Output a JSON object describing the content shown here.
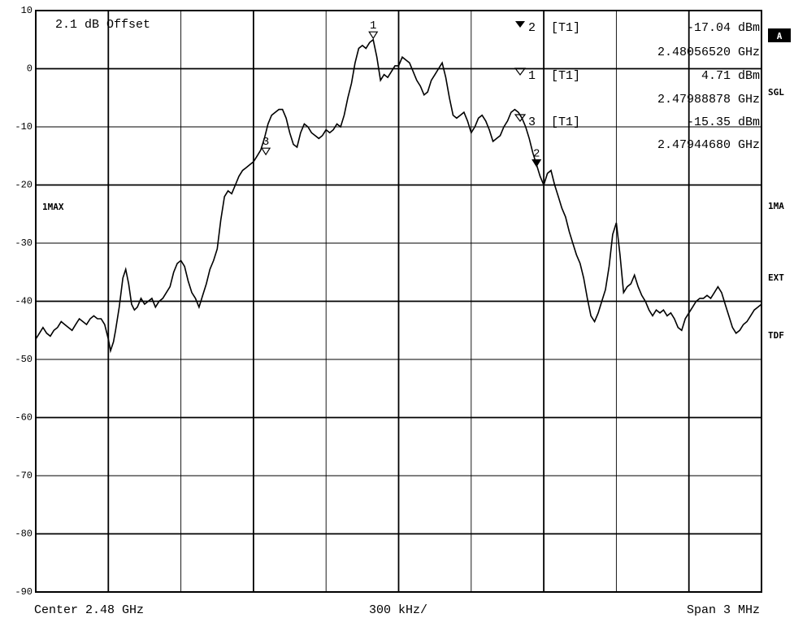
{
  "chart_data": {
    "type": "line",
    "instrument": "spectrum-analyzer",
    "grid": true,
    "ylim": [
      -90,
      10
    ],
    "xlim_index": [
      0,
      10
    ],
    "y_ticks": [
      "10",
      "0",
      "-10",
      "-20",
      "-30",
      "-40",
      "-50",
      "-60",
      "-70",
      "-80",
      "-90"
    ],
    "offset_label": "2.1 dB Offset",
    "trace_label": "1MAX",
    "footer": {
      "center": "Center 2.48 GHz",
      "div": "300 kHz/",
      "span": "Span 3 MHz"
    },
    "side_labels": {
      "a": "A",
      "sgl": "SGL",
      "ima": "1MA",
      "ext": "EXT",
      "tdf": "TDF"
    },
    "marker_readouts": [
      {
        "label": "2",
        "trace": "[T1]",
        "level": "-17.04 dBm",
        "freq": "2.48056520 GHz",
        "filled": true
      },
      {
        "label": "1",
        "trace": "[T1]",
        "level": "4.71 dBm",
        "freq": "2.47988878 GHz",
        "filled": false
      },
      {
        "label": "3",
        "trace": "[T1]",
        "level": "-15.35 dBm",
        "freq": "2.47944680 GHz",
        "filled": false
      }
    ],
    "markers": [
      {
        "label": "1",
        "x": 4.65,
        "y": 5.5,
        "filled": false
      },
      {
        "label": "2",
        "x": 6.9,
        "y": -16.5,
        "filled": true
      },
      {
        "label": "3",
        "x": 3.17,
        "y": -14.5,
        "filled": false
      }
    ],
    "series": [
      {
        "points": [
          [
            0.0,
            -46.5
          ],
          [
            0.05,
            -45.5
          ],
          [
            0.1,
            -44.5
          ],
          [
            0.15,
            -45.5
          ],
          [
            0.2,
            -46.0
          ],
          [
            0.25,
            -45.0
          ],
          [
            0.3,
            -44.5
          ],
          [
            0.35,
            -43.5
          ],
          [
            0.4,
            -44.0
          ],
          [
            0.45,
            -44.5
          ],
          [
            0.5,
            -45.0
          ],
          [
            0.55,
            -44.0
          ],
          [
            0.6,
            -43.0
          ],
          [
            0.65,
            -43.5
          ],
          [
            0.7,
            -44.0
          ],
          [
            0.75,
            -43.0
          ],
          [
            0.8,
            -42.5
          ],
          [
            0.85,
            -43.0
          ],
          [
            0.9,
            -43.0
          ],
          [
            0.95,
            -44.0
          ],
          [
            1.0,
            -46.5
          ],
          [
            1.03,
            -48.5
          ],
          [
            1.07,
            -47.0
          ],
          [
            1.1,
            -45.0
          ],
          [
            1.15,
            -41.0
          ],
          [
            1.2,
            -36.0
          ],
          [
            1.24,
            -34.5
          ],
          [
            1.28,
            -37.0
          ],
          [
            1.32,
            -40.5
          ],
          [
            1.36,
            -41.5
          ],
          [
            1.4,
            -41.0
          ],
          [
            1.45,
            -39.5
          ],
          [
            1.5,
            -40.5
          ],
          [
            1.55,
            -40.0
          ],
          [
            1.6,
            -39.5
          ],
          [
            1.65,
            -41.0
          ],
          [
            1.7,
            -40.0
          ],
          [
            1.75,
            -39.5
          ],
          [
            1.8,
            -38.5
          ],
          [
            1.85,
            -37.5
          ],
          [
            1.9,
            -35.0
          ],
          [
            1.95,
            -33.5
          ],
          [
            2.0,
            -33.0
          ],
          [
            2.05,
            -34.0
          ],
          [
            2.1,
            -36.5
          ],
          [
            2.15,
            -38.5
          ],
          [
            2.2,
            -39.5
          ],
          [
            2.25,
            -41.0
          ],
          [
            2.3,
            -39.0
          ],
          [
            2.35,
            -37.0
          ],
          [
            2.4,
            -34.5
          ],
          [
            2.45,
            -33.0
          ],
          [
            2.5,
            -31.0
          ],
          [
            2.55,
            -26.0
          ],
          [
            2.6,
            -22.0
          ],
          [
            2.65,
            -21.0
          ],
          [
            2.7,
            -21.5
          ],
          [
            2.75,
            -20.0
          ],
          [
            2.8,
            -18.5
          ],
          [
            2.85,
            -17.5
          ],
          [
            2.9,
            -17.0
          ],
          [
            2.95,
            -16.5
          ],
          [
            3.0,
            -16.0
          ],
          [
            3.05,
            -15.0
          ],
          [
            3.1,
            -14.0
          ],
          [
            3.15,
            -12.0
          ],
          [
            3.2,
            -9.5
          ],
          [
            3.25,
            -8.0
          ],
          [
            3.3,
            -7.5
          ],
          [
            3.35,
            -7.0
          ],
          [
            3.4,
            -7.0
          ],
          [
            3.45,
            -8.5
          ],
          [
            3.5,
            -11.0
          ],
          [
            3.55,
            -13.0
          ],
          [
            3.6,
            -13.5
          ],
          [
            3.65,
            -11.0
          ],
          [
            3.7,
            -9.5
          ],
          [
            3.75,
            -10.0
          ],
          [
            3.8,
            -11.0
          ],
          [
            3.85,
            -11.5
          ],
          [
            3.9,
            -12.0
          ],
          [
            3.95,
            -11.5
          ],
          [
            4.0,
            -10.5
          ],
          [
            4.05,
            -11.0
          ],
          [
            4.1,
            -10.5
          ],
          [
            4.15,
            -9.5
          ],
          [
            4.2,
            -10.0
          ],
          [
            4.25,
            -8.0
          ],
          [
            4.3,
            -5.0
          ],
          [
            4.35,
            -2.5
          ],
          [
            4.4,
            1.0
          ],
          [
            4.45,
            3.5
          ],
          [
            4.5,
            4.0
          ],
          [
            4.55,
            3.5
          ],
          [
            4.6,
            4.5
          ],
          [
            4.65,
            5.0
          ],
          [
            4.7,
            2.0
          ],
          [
            4.75,
            -2.0
          ],
          [
            4.8,
            -1.0
          ],
          [
            4.85,
            -1.5
          ],
          [
            4.9,
            -0.5
          ],
          [
            4.95,
            0.5
          ],
          [
            5.0,
            0.5
          ],
          [
            5.05,
            2.0
          ],
          [
            5.1,
            1.5
          ],
          [
            5.15,
            1.0
          ],
          [
            5.2,
            -0.5
          ],
          [
            5.25,
            -2.0
          ],
          [
            5.3,
            -3.0
          ],
          [
            5.35,
            -4.5
          ],
          [
            5.4,
            -4.0
          ],
          [
            5.45,
            -2.0
          ],
          [
            5.5,
            -1.0
          ],
          [
            5.55,
            0.0
          ],
          [
            5.6,
            1.0
          ],
          [
            5.65,
            -1.5
          ],
          [
            5.7,
            -5.0
          ],
          [
            5.75,
            -8.0
          ],
          [
            5.8,
            -8.5
          ],
          [
            5.85,
            -8.0
          ],
          [
            5.9,
            -7.5
          ],
          [
            5.95,
            -9.0
          ],
          [
            6.0,
            -11.0
          ],
          [
            6.05,
            -10.0
          ],
          [
            6.1,
            -8.5
          ],
          [
            6.15,
            -8.0
          ],
          [
            6.2,
            -9.0
          ],
          [
            6.25,
            -10.5
          ],
          [
            6.3,
            -12.5
          ],
          [
            6.35,
            -12.0
          ],
          [
            6.4,
            -11.5
          ],
          [
            6.45,
            -10.0
          ],
          [
            6.5,
            -9.0
          ],
          [
            6.55,
            -7.5
          ],
          [
            6.6,
            -7.0
          ],
          [
            6.65,
            -7.5
          ],
          [
            6.7,
            -8.5
          ],
          [
            6.75,
            -10.0
          ],
          [
            6.8,
            -12.0
          ],
          [
            6.85,
            -14.5
          ],
          [
            6.9,
            -16.5
          ],
          [
            6.95,
            -18.5
          ],
          [
            7.0,
            -20.0
          ],
          [
            7.05,
            -18.0
          ],
          [
            7.1,
            -17.5
          ],
          [
            7.15,
            -20.0
          ],
          [
            7.2,
            -22.0
          ],
          [
            7.25,
            -24.0
          ],
          [
            7.3,
            -25.5
          ],
          [
            7.35,
            -28.0
          ],
          [
            7.4,
            -30.0
          ],
          [
            7.45,
            -32.0
          ],
          [
            7.5,
            -33.5
          ],
          [
            7.55,
            -36.0
          ],
          [
            7.6,
            -39.5
          ],
          [
            7.65,
            -42.5
          ],
          [
            7.7,
            -43.5
          ],
          [
            7.75,
            -42.0
          ],
          [
            7.8,
            -40.0
          ],
          [
            7.85,
            -38.0
          ],
          [
            7.9,
            -34.0
          ],
          [
            7.95,
            -28.5
          ],
          [
            8.0,
            -26.5
          ],
          [
            8.05,
            -32.0
          ],
          [
            8.1,
            -38.5
          ],
          [
            8.15,
            -37.5
          ],
          [
            8.2,
            -37.0
          ],
          [
            8.25,
            -35.5
          ],
          [
            8.3,
            -37.5
          ],
          [
            8.35,
            -39.0
          ],
          [
            8.4,
            -40.0
          ],
          [
            8.45,
            -41.5
          ],
          [
            8.5,
            -42.5
          ],
          [
            8.55,
            -41.5
          ],
          [
            8.6,
            -42.0
          ],
          [
            8.65,
            -41.5
          ],
          [
            8.7,
            -42.5
          ],
          [
            8.75,
            -42.0
          ],
          [
            8.8,
            -43.0
          ],
          [
            8.85,
            -44.5
          ],
          [
            8.9,
            -45.0
          ],
          [
            8.95,
            -43.0
          ],
          [
            9.0,
            -42.0
          ],
          [
            9.05,
            -41.0
          ],
          [
            9.1,
            -40.0
          ],
          [
            9.15,
            -39.5
          ],
          [
            9.2,
            -39.5
          ],
          [
            9.25,
            -39.0
          ],
          [
            9.3,
            -39.5
          ],
          [
            9.35,
            -38.5
          ],
          [
            9.4,
            -37.5
          ],
          [
            9.45,
            -38.5
          ],
          [
            9.5,
            -40.5
          ],
          [
            9.55,
            -42.5
          ],
          [
            9.6,
            -44.5
          ],
          [
            9.65,
            -45.5
          ],
          [
            9.7,
            -45.0
          ],
          [
            9.75,
            -44.0
          ],
          [
            9.8,
            -43.5
          ],
          [
            9.85,
            -42.5
          ],
          [
            9.9,
            -41.5
          ],
          [
            9.95,
            -41.0
          ],
          [
            10.0,
            -40.5
          ]
        ]
      }
    ]
  }
}
